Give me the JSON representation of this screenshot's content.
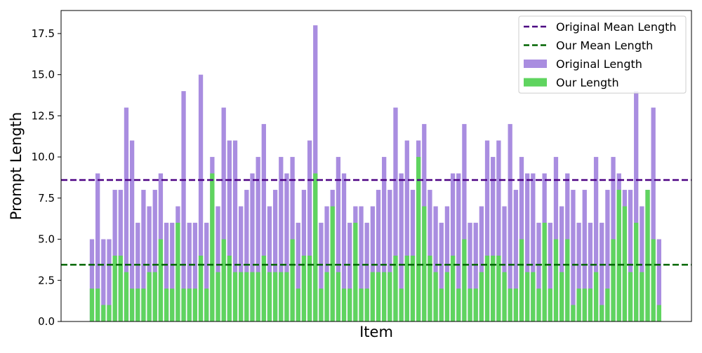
{
  "chart_data": {
    "type": "bar",
    "xlabel": "Item",
    "ylabel": "Prompt Length",
    "ylim": [
      0,
      18.9
    ],
    "yticks": [
      "0.0",
      "2.5",
      "5.0",
      "7.5",
      "10.0",
      "12.5",
      "15.0",
      "17.5"
    ],
    "legend_position": "top-right",
    "grid": false,
    "series": [
      {
        "name": "Original Length",
        "color": "#a98de0",
        "values": [
          5,
          9,
          5,
          5,
          8,
          8,
          13,
          11,
          6,
          8,
          7,
          8,
          9,
          6,
          6,
          7,
          14,
          6,
          6,
          15,
          6,
          10,
          7,
          13,
          11,
          11,
          7,
          8,
          9,
          10,
          12,
          7,
          8,
          10,
          9,
          10,
          6,
          8,
          11,
          18,
          6,
          7,
          8,
          10,
          9,
          6,
          7,
          7,
          6,
          7,
          8,
          10,
          8,
          13,
          9,
          11,
          8,
          11,
          12,
          8,
          7,
          6,
          7,
          9,
          9,
          12,
          6,
          6,
          7,
          11,
          10,
          11,
          7,
          12,
          8,
          10,
          9,
          9,
          6,
          9,
          6,
          10,
          7,
          9,
          8,
          6,
          8,
          6,
          10,
          6,
          8,
          10,
          9,
          8,
          8,
          14,
          7,
          8,
          13,
          5
        ]
      },
      {
        "name": "Our Length",
        "color": "#5fd45f",
        "values": [
          2,
          2,
          1,
          1,
          4,
          4,
          3,
          2,
          2,
          2,
          3,
          3,
          5,
          2,
          2,
          6,
          2,
          2,
          2,
          4,
          2,
          9,
          3,
          5,
          4,
          3,
          3,
          3,
          3,
          3,
          4,
          3,
          3,
          3,
          3,
          5,
          2,
          4,
          4,
          9,
          2,
          3,
          7,
          3,
          2,
          2,
          6,
          2,
          2,
          3,
          3,
          3,
          3,
          4,
          2,
          4,
          4,
          10,
          7,
          4,
          3,
          2,
          3,
          4,
          2,
          5,
          2,
          2,
          3,
          4,
          4,
          4,
          3,
          2,
          2,
          5,
          3,
          3,
          2,
          6,
          2,
          5,
          3,
          5,
          1,
          2,
          2,
          2,
          3,
          1,
          2,
          5,
          8,
          7,
          3,
          6,
          3,
          8,
          5,
          1
        ]
      }
    ],
    "reference_lines": [
      {
        "name": "Original Mean Length",
        "value": 8.6,
        "color": "#4b0082"
      },
      {
        "name": "Our Mean Length",
        "value": 3.45,
        "color": "#006400"
      }
    ]
  }
}
